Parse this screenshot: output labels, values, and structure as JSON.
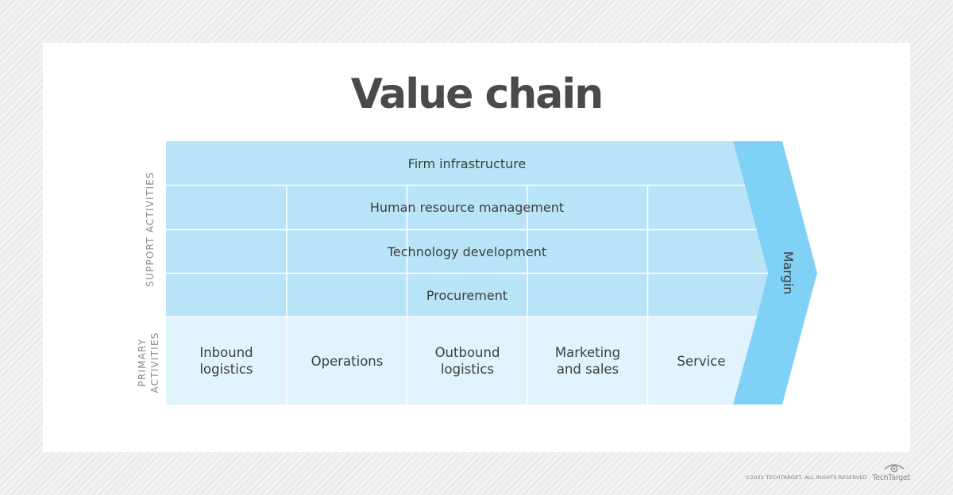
{
  "title": "Value chain",
  "side_labels": {
    "support": "SUPPORT ACTIVITIES",
    "primary": "PRIMARY\nACTIVITIES"
  },
  "support_activities": [
    "Firm infrastructure",
    "Human resource management",
    "Technology development",
    "Procurement"
  ],
  "primary_activities": [
    "Inbound\nlogistics",
    "Operations",
    "Outbound\nlogistics",
    "Marketing\nand sales",
    "Service"
  ],
  "margin_label": "Margin",
  "footer": {
    "copyright": "©2021 TECHTARGET. ALL RIGHTS RESERVED",
    "brand": "TechTarget"
  },
  "colors": {
    "support_fill": "#b9e4f8",
    "primary_fill": "#e1f3fc",
    "margin_fill": "#7fd1f5",
    "divider": "#ffffff",
    "title_text": "#4a4a4a"
  }
}
